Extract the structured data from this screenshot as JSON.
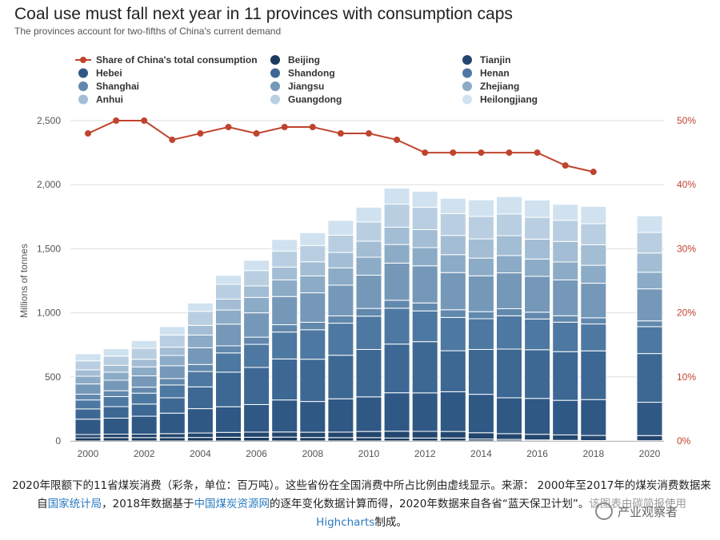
{
  "header": {
    "title": "Coal use must fall next year in 11 provinces with consumption caps",
    "subtitle": "The provinces account for two-fifths of China's current demand"
  },
  "caption": {
    "part1": "2020年限额下的11省煤炭消费（彩条，单位：百万吨）。这些省份在全国消费中所占比例由虚线显示。来源： 2000年至2017年的煤炭消费数据来自",
    "link1": "国家统计局",
    "part2": "，2018年数据基于",
    "link2": "中国煤炭资源网",
    "part3": "的逐年变化数据计算而得，2020年数据来自各省“蓝天保卫计划”。该图表由碳简报使用",
    "link3": "Highcharts",
    "part4": "制成。"
  },
  "watermark": {
    "text": "产业观察者"
  },
  "chart_data": {
    "type": "bar",
    "stacked": true,
    "x": [
      2000,
      2001,
      2002,
      2003,
      2004,
      2005,
      2006,
      2007,
      2008,
      2009,
      2010,
      2011,
      2012,
      2013,
      2014,
      2015,
      2016,
      2017,
      2018,
      2020
    ],
    "x_ticks": [
      "2000",
      "2002",
      "2004",
      "2006",
      "2008",
      "2010",
      "2012",
      "2014",
      "2016",
      "2018",
      "2020"
    ],
    "ylabel": "Millions of tonnes",
    "ylim": [
      0,
      2500
    ],
    "y_ticks": [
      "0",
      "500",
      "1,000",
      "1,500",
      "2,000",
      "2,500"
    ],
    "y2lim": [
      0,
      50
    ],
    "y2_ticks": [
      "0%",
      "10%",
      "20%",
      "30%",
      "40%",
      "50%"
    ],
    "grid": true,
    "legend_position": "top",
    "series": [
      {
        "name": "Beijing",
        "color": "#1b3a5e",
        "values": [
          25,
          26,
          26,
          26,
          27,
          29,
          29,
          30,
          27,
          26,
          26,
          23,
          23,
          23,
          15,
          12,
          8,
          5,
          3,
          2
        ]
      },
      {
        "name": "Tianjin",
        "color": "#23466e",
        "values": [
          25,
          27,
          27,
          31,
          35,
          38,
          40,
          40,
          41,
          43,
          48,
          53,
          52,
          51,
          49,
          45,
          44,
          42,
          40,
          40
        ]
      },
      {
        "name": "Hebei",
        "color": "#2f5885",
        "values": [
          120,
          125,
          140,
          160,
          190,
          200,
          215,
          250,
          240,
          260,
          270,
          300,
          300,
          310,
          300,
          280,
          280,
          270,
          280,
          260
        ]
      },
      {
        "name": "Shandong",
        "color": "#3d6894",
        "values": [
          80,
          90,
          95,
          120,
          170,
          270,
          290,
          320,
          330,
          340,
          370,
          380,
          400,
          320,
          350,
          380,
          380,
          380,
          380,
          380
        ]
      },
      {
        "name": "Henan",
        "color": "#4d78a1",
        "values": [
          70,
          78,
          85,
          100,
          120,
          150,
          180,
          210,
          230,
          250,
          260,
          280,
          240,
          260,
          240,
          260,
          240,
          230,
          210,
          210
        ]
      },
      {
        "name": "Shanghai",
        "color": "#6188ad",
        "values": [
          45,
          46,
          47,
          50,
          55,
          55,
          56,
          57,
          58,
          57,
          60,
          62,
          62,
          60,
          55,
          55,
          53,
          50,
          48,
          45
        ]
      },
      {
        "name": "Jiangsu",
        "color": "#7598b9",
        "values": [
          80,
          82,
          88,
          100,
          130,
          170,
          190,
          220,
          230,
          240,
          260,
          290,
          290,
          290,
          280,
          280,
          280,
          280,
          270,
          250
        ]
      },
      {
        "name": "Zhejiang",
        "color": "#8babc6",
        "values": [
          60,
          63,
          70,
          80,
          100,
          110,
          120,
          130,
          132,
          135,
          140,
          145,
          142,
          140,
          138,
          135,
          135,
          140,
          140,
          130
        ]
      },
      {
        "name": "Anhui",
        "color": "#a2bdd4",
        "values": [
          50,
          53,
          60,
          65,
          75,
          85,
          90,
          100,
          110,
          120,
          125,
          135,
          140,
          150,
          150,
          155,
          155,
          160,
          160,
          150
        ]
      },
      {
        "name": "Guangdong",
        "color": "#b9cfe1",
        "values": [
          70,
          72,
          85,
          95,
          110,
          115,
          120,
          125,
          127,
          135,
          150,
          180,
          175,
          170,
          175,
          170,
          170,
          165,
          165,
          160
        ]
      },
      {
        "name": "Heilongjiang",
        "color": "#d0e2f0",
        "values": [
          55,
          58,
          60,
          65,
          65,
          70,
          80,
          90,
          100,
          115,
          115,
          125,
          125,
          120,
          130,
          135,
          135,
          125,
          135,
          130
        ]
      }
    ],
    "share_line": {
      "name": "Share of China's total consumption",
      "color": "#c0432e",
      "x": [
        2000,
        2001,
        2002,
        2003,
        2004,
        2005,
        2006,
        2007,
        2008,
        2009,
        2010,
        2011,
        2012,
        2013,
        2014,
        2015,
        2016,
        2017,
        2018
      ],
      "values": [
        48,
        50,
        50,
        47,
        48,
        49,
        48,
        49,
        49,
        48,
        48,
        47,
        45,
        45,
        45,
        45,
        45,
        43,
        42
      ]
    }
  }
}
